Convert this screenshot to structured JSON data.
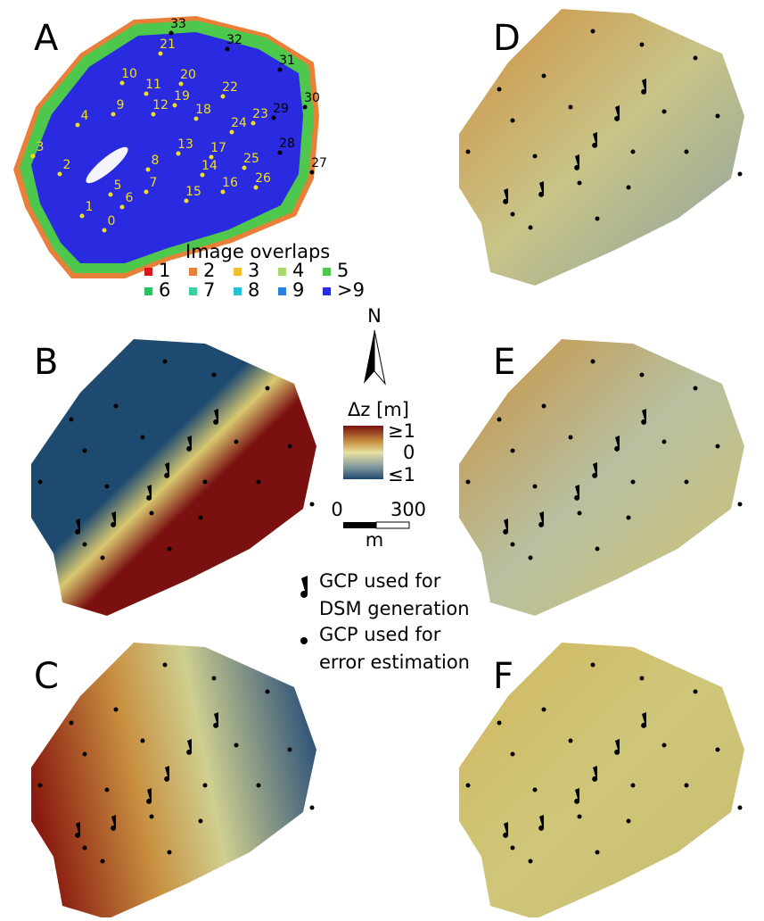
{
  "panels": [
    {
      "label": "A"
    },
    {
      "label": "B"
    },
    {
      "label": "C"
    },
    {
      "label": "D"
    },
    {
      "label": "E"
    },
    {
      "label": "F"
    }
  ],
  "overlap_map": {
    "gcp_labels": [
      "0",
      "1",
      "2",
      "3",
      "4",
      "5",
      "6",
      "7",
      "8",
      "9",
      "10",
      "11",
      "12",
      "13",
      "14",
      "15",
      "16",
      "17",
      "18",
      "19",
      "20",
      "21",
      "22",
      "23",
      "24",
      "25",
      "26",
      "27",
      "28",
      "29",
      "30",
      "31",
      "32",
      "33"
    ]
  },
  "overlap_legend": {
    "title": "Image overlaps",
    "items": [
      {
        "label": "1",
        "color": "#d7191c"
      },
      {
        "label": "2",
        "color": "#e8803a"
      },
      {
        "label": "3",
        "color": "#f0c030"
      },
      {
        "label": "4",
        "color": "#a6d96a"
      },
      {
        "label": "5",
        "color": "#4dc84d"
      },
      {
        "label": "6",
        "color": "#2ec060"
      },
      {
        "label": "7",
        "color": "#3ad0a0"
      },
      {
        "label": "8",
        "color": "#2ac0d8"
      },
      {
        "label": "9",
        "color": "#2a80e0"
      },
      {
        "label": ">9",
        "color": "#2a2ae0"
      }
    ]
  },
  "north_arrow": {
    "label": "N"
  },
  "colorbar": {
    "title": "Δz [m]",
    "labels": [
      "≥1",
      "0",
      "≤1"
    ]
  },
  "scale_bar": {
    "labels": [
      "0",
      "300"
    ],
    "unit": "m"
  },
  "gcp_legend": [
    {
      "lines": [
        "GCP used for",
        "DSM generation"
      ]
    },
    {
      "lines": [
        "GCP used for",
        "error estimation"
      ]
    }
  ]
}
